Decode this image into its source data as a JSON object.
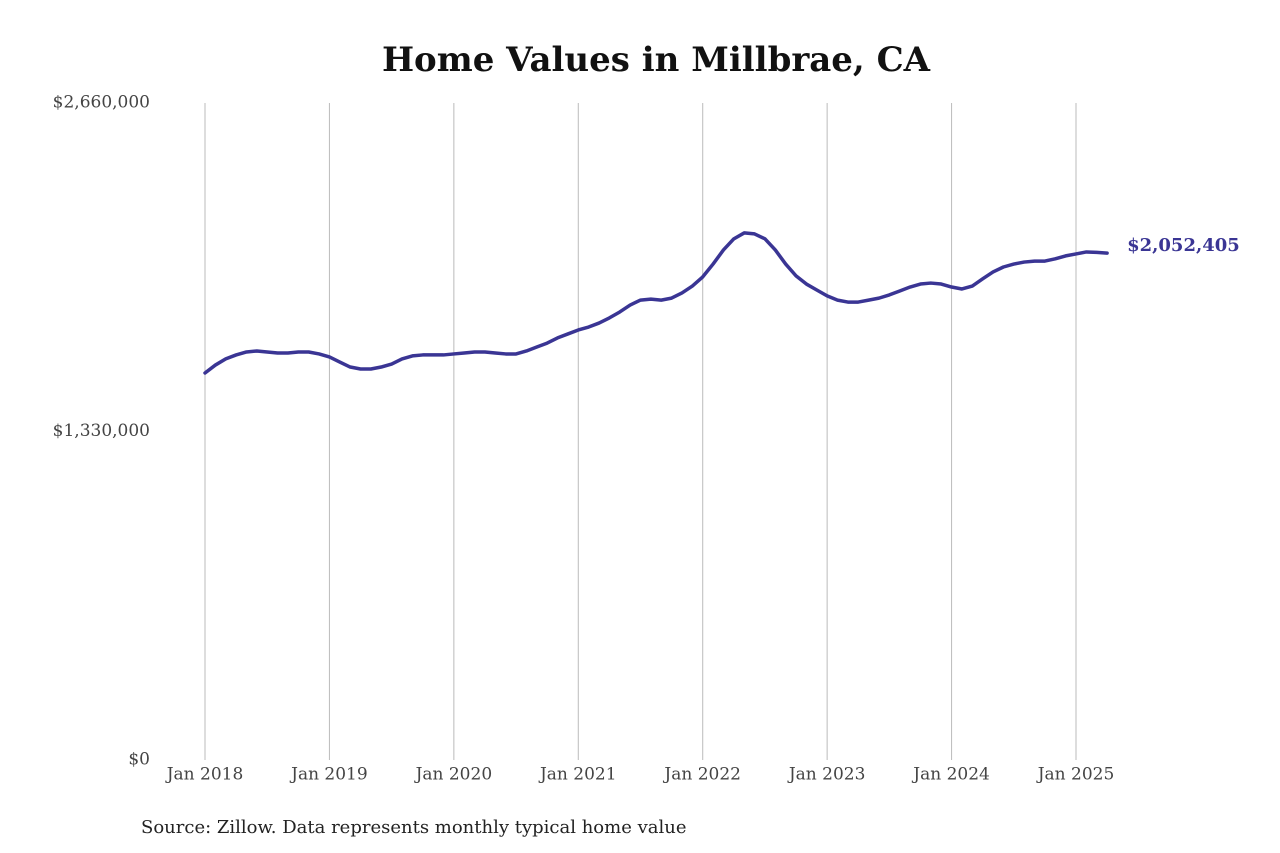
{
  "chart_data": {
    "type": "line",
    "title": "Home Values in Millbrae, CA",
    "source": "Source: Zillow. Data represents monthly typical home value",
    "x": [
      "2018-01",
      "2018-02",
      "2018-03",
      "2018-04",
      "2018-05",
      "2018-06",
      "2018-07",
      "2018-08",
      "2018-09",
      "2018-10",
      "2018-11",
      "2018-12",
      "2019-01",
      "2019-02",
      "2019-03",
      "2019-04",
      "2019-05",
      "2019-06",
      "2019-07",
      "2019-08",
      "2019-09",
      "2019-10",
      "2019-11",
      "2019-12",
      "2020-01",
      "2020-02",
      "2020-03",
      "2020-04",
      "2020-05",
      "2020-06",
      "2020-07",
      "2020-08",
      "2020-09",
      "2020-10",
      "2020-11",
      "2020-12",
      "2021-01",
      "2021-02",
      "2021-03",
      "2021-04",
      "2021-05",
      "2021-06",
      "2021-07",
      "2021-08",
      "2021-09",
      "2021-10",
      "2021-11",
      "2021-12",
      "2022-01",
      "2022-02",
      "2022-03",
      "2022-04",
      "2022-05",
      "2022-06",
      "2022-07",
      "2022-08",
      "2022-09",
      "2022-10",
      "2022-11",
      "2022-12",
      "2023-01",
      "2023-02",
      "2023-03",
      "2023-04",
      "2023-05",
      "2023-06",
      "2023-07",
      "2023-08",
      "2023-09",
      "2023-10",
      "2023-11",
      "2023-12",
      "2024-01",
      "2024-02",
      "2024-03",
      "2024-04",
      "2024-05",
      "2024-06",
      "2024-07",
      "2024-08",
      "2024-09",
      "2024-10",
      "2024-11",
      "2024-12",
      "2025-01",
      "2025-02",
      "2025-03",
      "2025-04"
    ],
    "series": [
      {
        "name": "Home value",
        "color": "#3a3594",
        "values": [
          1567000,
          1599000,
          1624000,
          1640000,
          1652000,
          1656000,
          1652000,
          1648000,
          1648000,
          1652000,
          1652000,
          1644000,
          1632000,
          1611000,
          1591000,
          1583000,
          1583000,
          1591000,
          1603000,
          1624000,
          1636000,
          1640000,
          1640000,
          1640000,
          1644000,
          1648000,
          1652000,
          1652000,
          1648000,
          1644000,
          1644000,
          1656000,
          1672000,
          1688000,
          1709000,
          1725000,
          1741000,
          1753000,
          1769000,
          1790000,
          1814000,
          1842000,
          1862000,
          1866000,
          1862000,
          1870000,
          1891000,
          1919000,
          1956000,
          2008000,
          2065000,
          2110000,
          2134000,
          2130000,
          2110000,
          2065000,
          2008000,
          1960000,
          1927000,
          1903000,
          1879000,
          1862000,
          1854000,
          1854000,
          1862000,
          1870000,
          1883000,
          1899000,
          1915000,
          1927000,
          1931000,
          1927000,
          1915000,
          1907000,
          1919000,
          1948000,
          1976000,
          1996000,
          2008000,
          2016000,
          2020000,
          2020000,
          2029000,
          2041000,
          2049000,
          2057000,
          2055000,
          2052405
        ],
        "value_labels": [
          null,
          null,
          null,
          null,
          null,
          null,
          null,
          null,
          null,
          null,
          null,
          null,
          null,
          null,
          null,
          null,
          null,
          null,
          null,
          null,
          null,
          null,
          null,
          null,
          null,
          null,
          null,
          null,
          null,
          null,
          null,
          null,
          null,
          null,
          null,
          null,
          null,
          null,
          null,
          null,
          null,
          null,
          null,
          null,
          null,
          null,
          null,
          null,
          null,
          null,
          null,
          null,
          null,
          null,
          null,
          null,
          null,
          null,
          null,
          null,
          null,
          null,
          null,
          null,
          null,
          null,
          null,
          null,
          null,
          null,
          null,
          null,
          null,
          null,
          null,
          null,
          null,
          null,
          null,
          null,
          null,
          null,
          null,
          null,
          null,
          null,
          null,
          "$2,052,405"
        ]
      }
    ],
    "ylim": [
      0,
      2660000
    ],
    "yticks": [
      {
        "value": 0,
        "label": "$0"
      },
      {
        "value": 1330000,
        "label": "$1,330,000"
      },
      {
        "value": 2660000,
        "label": "$2,660,000"
      }
    ],
    "xticks": [
      {
        "value": "2018-01",
        "label": "Jan 2018"
      },
      {
        "value": "2019-01",
        "label": "Jan 2019"
      },
      {
        "value": "2020-01",
        "label": "Jan 2020"
      },
      {
        "value": "2021-01",
        "label": "Jan 2021"
      },
      {
        "value": "2022-01",
        "label": "Jan 2022"
      },
      {
        "value": "2023-01",
        "label": "Jan 2023"
      },
      {
        "value": "2024-01",
        "label": "Jan 2024"
      },
      {
        "value": "2025-01",
        "label": "Jan 2025"
      }
    ],
    "grid": "x"
  }
}
